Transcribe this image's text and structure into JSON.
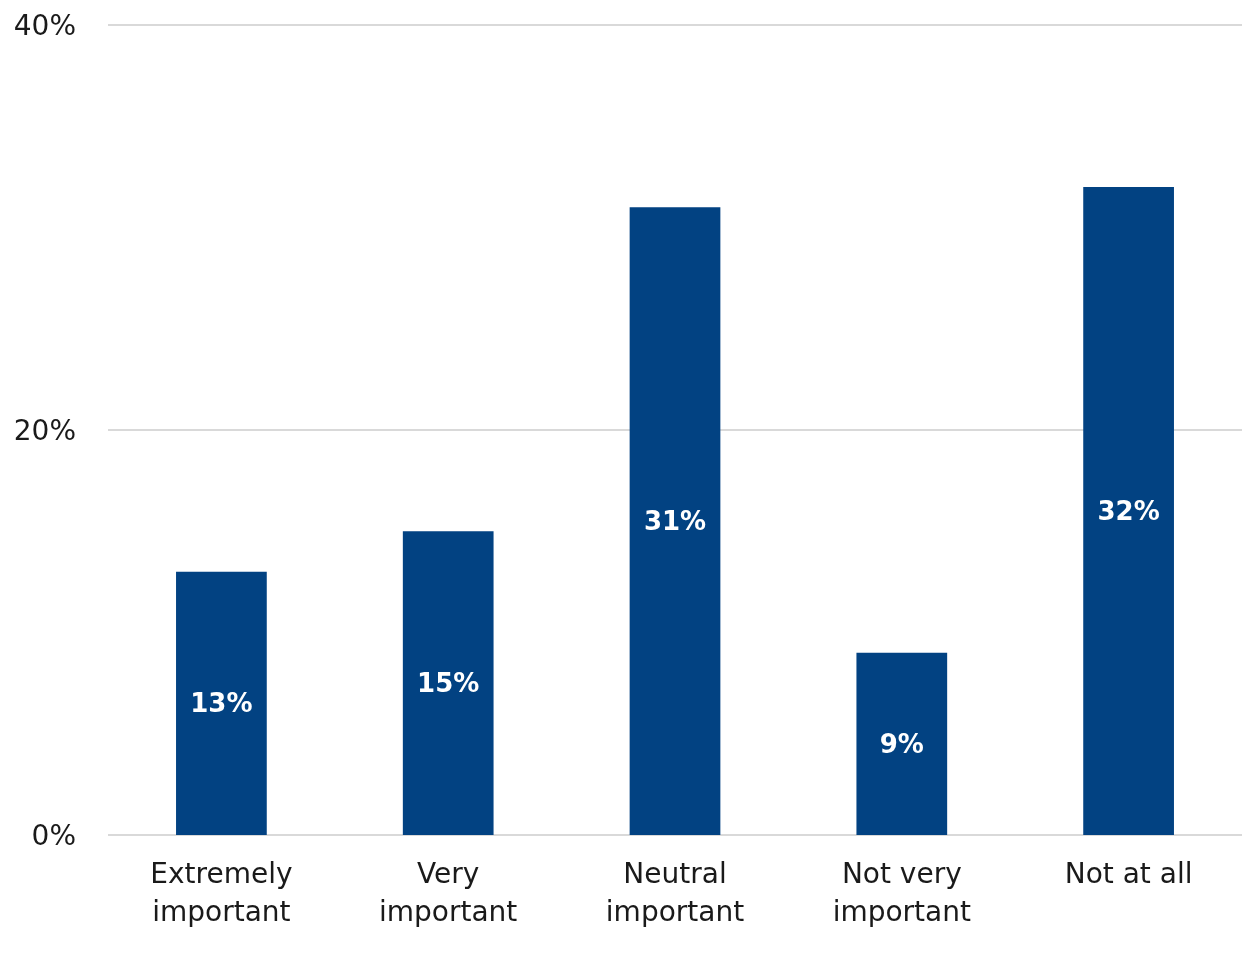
{
  "chart_data": {
    "type": "bar",
    "categories": [
      "Extremely important",
      "Very important",
      "Neutral important",
      "Not very important",
      "Not at all"
    ],
    "values": [
      13,
      15,
      31,
      9,
      32
    ],
    "color": "#024282",
    "value_labels": [
      "13%",
      "15%",
      "31%",
      "9%",
      "32%"
    ],
    "ylim": [
      0,
      40
    ],
    "yticks": [
      {
        "value": 0,
        "label": "0%"
      },
      {
        "value": 20,
        "label": "20%"
      },
      {
        "value": 40,
        "label": "40%"
      }
    ],
    "grid": "y"
  }
}
